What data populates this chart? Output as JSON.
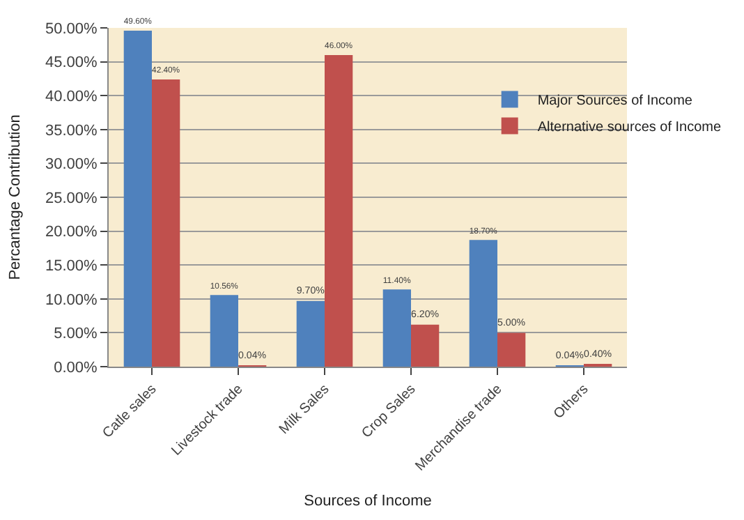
{
  "chart_data": {
    "type": "bar",
    "xlabel": "Sources of Income",
    "ylabel": "Percantage Contribution",
    "categories": [
      "Catle sales",
      "Livestock trade",
      "Milk Sales",
      "Crop Sales",
      "Merchandise trade",
      "Others"
    ],
    "series": [
      {
        "name": "Major Sources of Income",
        "color": "#4f81bd",
        "values": [
          49.6,
          10.56,
          9.7,
          11.4,
          18.7,
          0.04
        ],
        "value_labels": [
          "49.60%",
          "10.56%",
          "9.70%",
          "11.40%",
          "18.70%",
          "0.04%"
        ]
      },
      {
        "name": "Alternative sources of Income",
        "color": "#c0504d",
        "values": [
          42.4,
          0.04,
          46.0,
          6.2,
          5.0,
          0.4
        ],
        "value_labels": [
          "42.40%",
          "0.04%",
          "46.00%",
          "6.20%",
          "5.00%",
          "0.40%"
        ]
      }
    ],
    "ylim": [
      0,
      50
    ],
    "yticks": [
      {
        "value": 0,
        "label": "0.00%"
      },
      {
        "value": 5,
        "label": "5.00%"
      },
      {
        "value": 10,
        "label": "10.00%"
      },
      {
        "value": 15,
        "label": "15.00%"
      },
      {
        "value": 20,
        "label": "20.00%"
      },
      {
        "value": 25,
        "label": "25.00%"
      },
      {
        "value": 30,
        "label": "30.00%"
      },
      {
        "value": 35,
        "label": "35.00%"
      },
      {
        "value": 40,
        "label": "40.00%"
      },
      {
        "value": 45,
        "label": "45.00%"
      },
      {
        "value": 50,
        "label": "50.00%"
      }
    ],
    "grid": "y",
    "legend": "right"
  }
}
